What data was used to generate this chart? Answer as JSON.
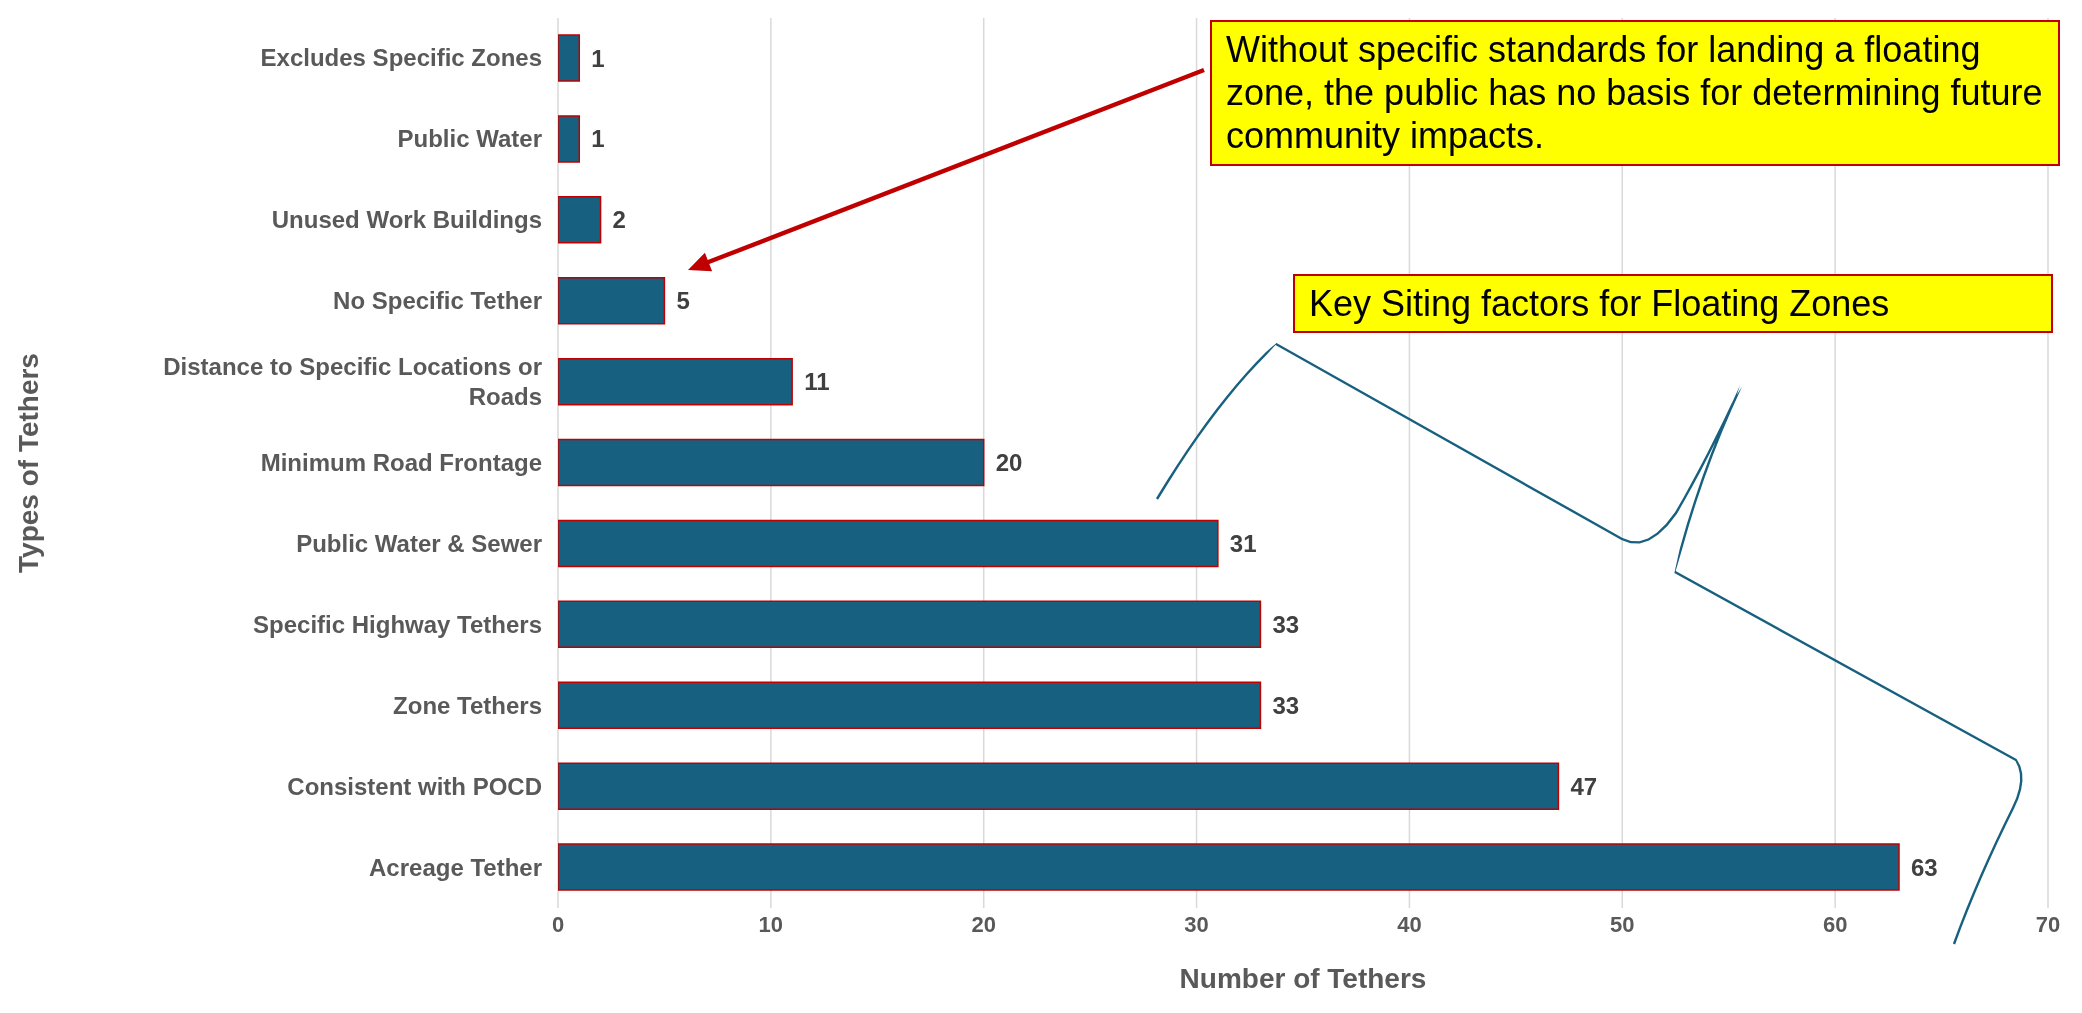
{
  "chart_data": {
    "type": "bar",
    "orientation": "horizontal",
    "xlabel": "Number of Tethers",
    "ylabel": "Types of Tethers",
    "categories": [
      "Excludes Specific Zones",
      "Public Water",
      "Unused Work Buildings",
      "No Specific Tether",
      "Distance to Specific Locations or Roads",
      "Minimum Road Frontage",
      "Public Water & Sewer",
      "Specific  Highway Tethers",
      "Zone Tethers",
      "Consistent with POCD",
      "Acreage Tether"
    ],
    "values": [
      1,
      1,
      2,
      5,
      11,
      20,
      31,
      33,
      33,
      47,
      63
    ],
    "color": "#17607f",
    "xlim": [
      0,
      70
    ],
    "xticks": [
      0,
      10,
      20,
      30,
      40,
      50,
      60,
      70
    ],
    "grid": "x",
    "data_labels": true,
    "annotations": [
      "Without specific standards for landing a floating zone, the public has no basis for determining future community impacts.",
      "Key Siting factors for Floating Zones"
    ]
  }
}
